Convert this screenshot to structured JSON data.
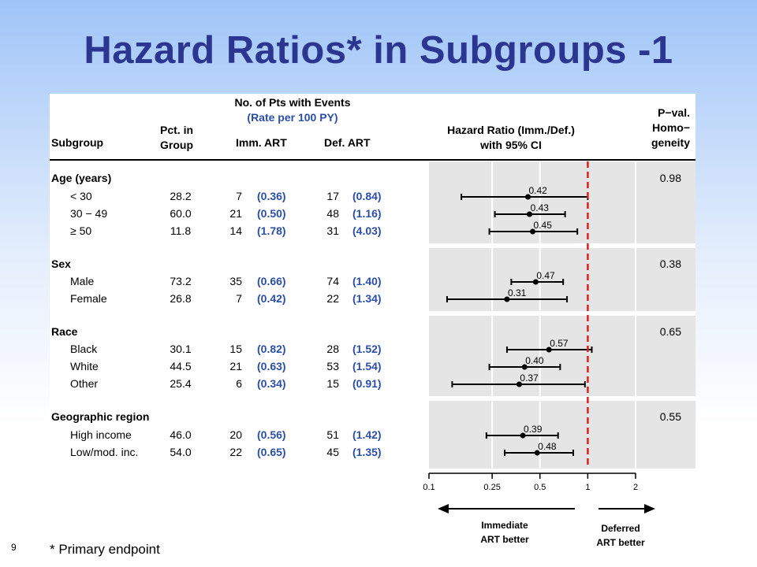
{
  "slide": {
    "title": "Hazard Ratios* in Subgroups -1",
    "number": "9",
    "footnote": "* Primary endpoint"
  },
  "table": {
    "headers": {
      "subgroup": "Subgroup",
      "pct_line1": "Pct. in",
      "pct_line2": "Group",
      "events_line1": "No. of Pts with Events",
      "events_line2": "(Rate per 100 PY)",
      "imm": "Imm. ART",
      "def": "Def. ART",
      "hr_line1": "Hazard Ratio (Imm./Def.)",
      "hr_line2": "with 95% CI",
      "pval_line1": "P−val.",
      "pval_line2": "Homo−",
      "pval_line3": "geneity"
    },
    "groups": [
      {
        "name": "Age (years)",
        "p_value": "0.98",
        "rows": [
          {
            "label": "< 30",
            "pct": "28.2",
            "imm_n": "7",
            "imm_rate": "(0.36)",
            "def_n": "17",
            "def_rate": "(0.84)",
            "hr_label": "0.42"
          },
          {
            "label": "30 − 49",
            "pct": "60.0",
            "imm_n": "21",
            "imm_rate": "(0.50)",
            "def_n": "48",
            "def_rate": "(1.16)",
            "hr_label": "0.43"
          },
          {
            "label": "≥  50",
            "pct": "11.8",
            "imm_n": "14",
            "imm_rate": "(1.78)",
            "def_n": "31",
            "def_rate": "(4.03)",
            "hr_label": "0.45"
          }
        ]
      },
      {
        "name": "Sex",
        "p_value": "0.38",
        "rows": [
          {
            "label": "Male",
            "pct": "73.2",
            "imm_n": "35",
            "imm_rate": "(0.66)",
            "def_n": "74",
            "def_rate": "(1.40)",
            "hr_label": "0.47"
          },
          {
            "label": "Female",
            "pct": "26.8",
            "imm_n": "7",
            "imm_rate": "(0.42)",
            "def_n": "22",
            "def_rate": "(1.34)",
            "hr_label": "0.31"
          }
        ]
      },
      {
        "name": "Race",
        "p_value": "0.65",
        "rows": [
          {
            "label": "Black",
            "pct": "30.1",
            "imm_n": "15",
            "imm_rate": "(0.82)",
            "def_n": "28",
            "def_rate": "(1.52)",
            "hr_label": "0.57"
          },
          {
            "label": "White",
            "pct": "44.5",
            "imm_n": "21",
            "imm_rate": "(0.63)",
            "def_n": "53",
            "def_rate": "(1.54)",
            "hr_label": "0.40"
          },
          {
            "label": "Other",
            "pct": "25.4",
            "imm_n": "6",
            "imm_rate": "(0.34)",
            "def_n": "15",
            "def_rate": "(0.91)",
            "hr_label": "0.37"
          }
        ]
      },
      {
        "name": "Geographic region",
        "p_value": "0.55",
        "rows": [
          {
            "label": "High income",
            "pct": "46.0",
            "imm_n": "20",
            "imm_rate": "(0.56)",
            "def_n": "51",
            "def_rate": "(1.42)",
            "hr_label": "0.39"
          },
          {
            "label": "Low/mod. inc.",
            "pct": "54.0",
            "imm_n": "22",
            "imm_rate": "(0.65)",
            "def_n": "45",
            "def_rate": "(1.35)",
            "hr_label": "0.48"
          }
        ]
      }
    ]
  },
  "chart_data": {
    "type": "forest",
    "x_scale": "log",
    "xlim": [
      0.1,
      2
    ],
    "x_ticks": [
      "0.1",
      "0.25",
      "0.5",
      "1",
      "2"
    ],
    "reference_line": 1,
    "reference_line_color": "#e02020",
    "directions": {
      "left_line1": "Immediate",
      "left_line2": "ART better",
      "right_line1": "Deferred",
      "right_line2": "ART better"
    },
    "points": [
      {
        "subgroup": "< 30",
        "hr": 0.42,
        "ci": [
          0.16,
          1.0
        ]
      },
      {
        "subgroup": "30 − 49",
        "hr": 0.43,
        "ci": [
          0.26,
          0.72
        ]
      },
      {
        "subgroup": "≥ 50",
        "hr": 0.45,
        "ci": [
          0.24,
          0.86
        ]
      },
      {
        "subgroup": "Male",
        "hr": 0.47,
        "ci": [
          0.33,
          0.7
        ]
      },
      {
        "subgroup": "Female",
        "hr": 0.31,
        "ci": [
          0.13,
          0.74
        ]
      },
      {
        "subgroup": "Black",
        "hr": 0.57,
        "ci": [
          0.31,
          1.06
        ]
      },
      {
        "subgroup": "White",
        "hr": 0.4,
        "ci": [
          0.24,
          0.67
        ]
      },
      {
        "subgroup": "Other",
        "hr": 0.37,
        "ci": [
          0.14,
          0.96
        ]
      },
      {
        "subgroup": "High income",
        "hr": 0.39,
        "ci": [
          0.23,
          0.65
        ]
      },
      {
        "subgroup": "Low/mod. inc.",
        "hr": 0.48,
        "ci": [
          0.3,
          0.81
        ]
      }
    ],
    "colors": {
      "panel_bg": "#e5e5e5",
      "grid": "#ffffff",
      "rate_text": "#2b4ea8",
      "title": "#2b3690"
    }
  }
}
